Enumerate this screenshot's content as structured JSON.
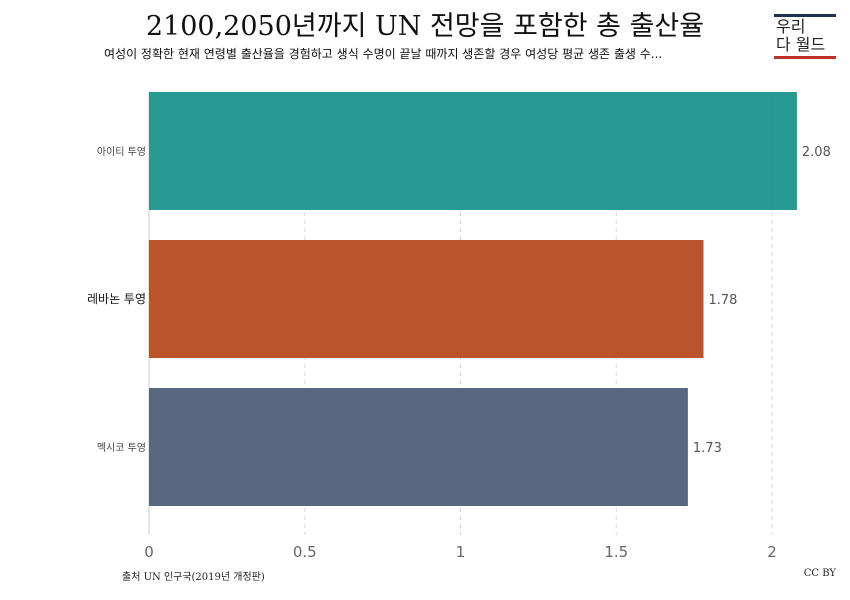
{
  "header": {
    "title": "2100,2050년까지 UN 전망을 포함한 총 출산율",
    "subtitle": "여성이 정확한 현재 연령별 출산율을 경험하고 생식 수명이 끝날 때까지 생존할 경우 여성당 평균 생존 출생 수..."
  },
  "logo": {
    "line1": "우리",
    "line2": "다 월드"
  },
  "footer": {
    "source": "출처 UN 인구국(2019년 개정판)",
    "license": "CC BY"
  },
  "chart_data": {
    "type": "bar",
    "orientation": "horizontal",
    "categories": [
      "아이티 투영",
      "레바논 투영",
      "멕시코 투영"
    ],
    "values": [
      2.08,
      1.78,
      1.73
    ],
    "value_labels": [
      "2.08",
      "1.78",
      "1.73"
    ],
    "colors": [
      "#16918a",
      "#b5441a",
      "#4a5b76"
    ],
    "xlim": [
      0,
      2.08
    ],
    "xticks": [
      0,
      0.5,
      1,
      1.5,
      2
    ],
    "xtick_labels": [
      "0",
      "0.5",
      "1",
      "1.5",
      "2"
    ],
    "grid": true,
    "title": "2100,2050년까지 UN 전망을 포함한 총 출산율",
    "xlabel": "",
    "ylabel": ""
  }
}
